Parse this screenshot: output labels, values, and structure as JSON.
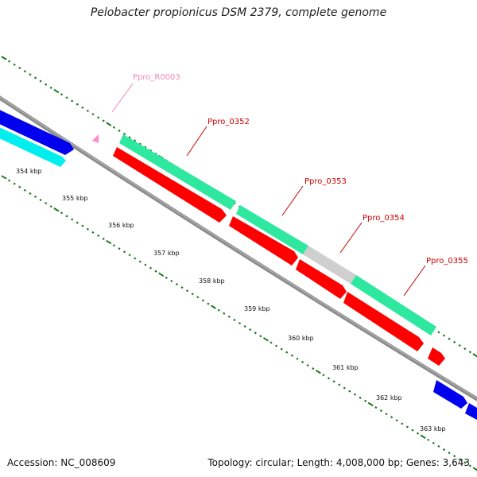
{
  "title": "Pelobacter propionicus DSM 2379, complete genome",
  "footer": {
    "accession": "Accession: NC_008609",
    "summary": "Topology: circular; Length: 4,008,000 bp; Genes: 3,643"
  },
  "colors": {
    "backbone": "#8c8c8c",
    "dots": "#1e7a1e",
    "cds_forward_teal": "#2ee8a0",
    "cds_red": "#ff0000",
    "gene_blue": "#0000ee",
    "gene_cyan": "#00eeee",
    "gene_gray": "#cfcfcf",
    "rna_pink": "#ff88cc",
    "label_red": "#cc0000",
    "label_pink": "#ee88bb"
  },
  "kbp_ticks": [
    "354 kbp",
    "355 kbp",
    "356 kbp",
    "357 kbp",
    "358 kbp",
    "359 kbp",
    "360 kbp",
    "361 kbp",
    "362 kbp",
    "363 kbp"
  ],
  "gene_labels": [
    {
      "id": "rna",
      "text": "Ppro_R0003"
    },
    {
      "id": "g352",
      "text": "Ppro_0352"
    },
    {
      "id": "g353",
      "text": "Ppro_0353"
    },
    {
      "id": "g354",
      "text": "Ppro_0354"
    },
    {
      "id": "g355",
      "text": "Ppro_0355"
    }
  ]
}
